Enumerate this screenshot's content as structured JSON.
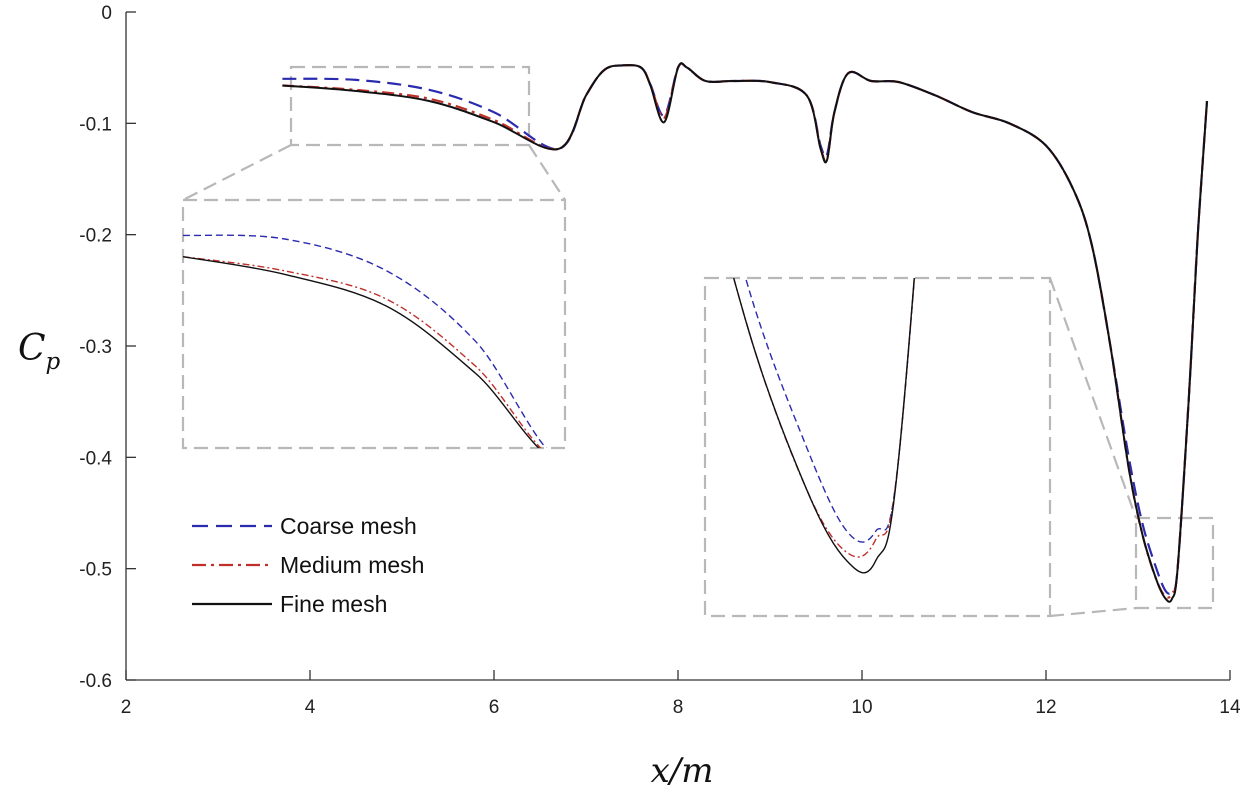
{
  "chart_data": {
    "type": "line",
    "xlabel": "x/m",
    "ylabel": "Cp",
    "ylabel_main": "C",
    "ylabel_sub": "p",
    "xlim": [
      2,
      14
    ],
    "ylim": [
      -0.6,
      0
    ],
    "xticks": [
      2,
      4,
      6,
      8,
      10,
      12,
      14
    ],
    "xtick_labels": [
      "2",
      "4",
      "6",
      "8",
      "10",
      "12",
      "14"
    ],
    "yticks": [
      0,
      -0.1,
      -0.2,
      -0.3,
      -0.4,
      -0.5,
      -0.6
    ],
    "ytick_labels": [
      "0",
      "-0.1",
      "-0.2",
      "-0.3",
      "-0.4",
      "-0.5",
      "-0.6"
    ],
    "grid": false,
    "legend_position": "bottom-left",
    "series": [
      {
        "name": "Coarse mesh",
        "color": "#2b2bb0",
        "style": "dashed",
        "x": [
          3.7,
          4.5,
          5.3,
          6.0,
          6.7,
          7.0,
          7.2,
          7.4,
          7.6,
          7.7,
          7.85,
          8.0,
          8.1,
          8.3,
          8.6,
          9.0,
          9.4,
          9.55,
          9.62,
          9.7,
          9.85,
          10.1,
          10.4,
          10.8,
          11.2,
          11.6,
          12.0,
          12.3,
          12.5,
          12.7,
          12.9,
          13.05,
          13.2,
          13.3,
          13.37,
          13.43,
          13.55,
          13.65,
          13.75
        ],
        "y": [
          -0.06,
          -0.061,
          -0.07,
          -0.09,
          -0.123,
          -0.075,
          -0.052,
          -0.048,
          -0.05,
          -0.065,
          -0.093,
          -0.05,
          -0.05,
          -0.062,
          -0.062,
          -0.063,
          -0.075,
          -0.12,
          -0.128,
          -0.09,
          -0.055,
          -0.062,
          -0.063,
          -0.075,
          -0.09,
          -0.1,
          -0.12,
          -0.16,
          -0.21,
          -0.3,
          -0.4,
          -0.46,
          -0.5,
          -0.52,
          -0.52,
          -0.5,
          -0.35,
          -0.2,
          -0.08
        ]
      },
      {
        "name": "Medium mesh",
        "color": "#c0302b",
        "style": "dashdot",
        "x": [
          3.7,
          4.5,
          5.3,
          6.0,
          6.7,
          7.0,
          7.2,
          7.4,
          7.6,
          7.7,
          7.85,
          8.0,
          8.1,
          8.3,
          8.6,
          9.0,
          9.4,
          9.55,
          9.62,
          9.7,
          9.85,
          10.1,
          10.4,
          10.8,
          11.2,
          11.6,
          12.0,
          12.3,
          12.5,
          12.7,
          12.9,
          13.05,
          13.2,
          13.3,
          13.37,
          13.43,
          13.55,
          13.65,
          13.75
        ],
        "y": [
          -0.066,
          -0.07,
          -0.078,
          -0.097,
          -0.123,
          -0.075,
          -0.052,
          -0.048,
          -0.05,
          -0.065,
          -0.095,
          -0.05,
          -0.05,
          -0.062,
          -0.062,
          -0.063,
          -0.075,
          -0.122,
          -0.132,
          -0.09,
          -0.055,
          -0.062,
          -0.063,
          -0.075,
          -0.09,
          -0.1,
          -0.12,
          -0.16,
          -0.21,
          -0.3,
          -0.41,
          -0.47,
          -0.51,
          -0.525,
          -0.522,
          -0.5,
          -0.35,
          -0.2,
          -0.08
        ]
      },
      {
        "name": "Fine mesh",
        "color": "#111111",
        "style": "solid",
        "x": [
          3.7,
          4.5,
          5.3,
          6.0,
          6.7,
          7.0,
          7.2,
          7.4,
          7.6,
          7.7,
          7.85,
          8.0,
          8.1,
          8.3,
          8.6,
          9.0,
          9.4,
          9.55,
          9.62,
          9.7,
          9.85,
          10.1,
          10.4,
          10.8,
          11.2,
          11.6,
          12.0,
          12.3,
          12.5,
          12.7,
          12.9,
          13.05,
          13.2,
          13.3,
          13.37,
          13.43,
          13.55,
          13.65,
          13.75
        ],
        "y": [
          -0.066,
          -0.071,
          -0.08,
          -0.099,
          -0.123,
          -0.075,
          -0.052,
          -0.048,
          -0.05,
          -0.066,
          -0.099,
          -0.05,
          -0.05,
          -0.062,
          -0.062,
          -0.063,
          -0.075,
          -0.123,
          -0.133,
          -0.09,
          -0.055,
          -0.062,
          -0.063,
          -0.075,
          -0.09,
          -0.1,
          -0.12,
          -0.16,
          -0.21,
          -0.3,
          -0.41,
          -0.47,
          -0.51,
          -0.527,
          -0.527,
          -0.5,
          -0.35,
          -0.2,
          -0.08
        ]
      }
    ],
    "insets": [
      {
        "name": "left-zoom",
        "source_xlim": [
          3.7,
          6.7
        ],
        "source_ylim": [
          -0.12,
          -0.05
        ]
      },
      {
        "name": "right-zoom",
        "source_xlim": [
          12.95,
          13.8
        ],
        "source_ylim": [
          -0.54,
          -0.46
        ]
      }
    ]
  }
}
